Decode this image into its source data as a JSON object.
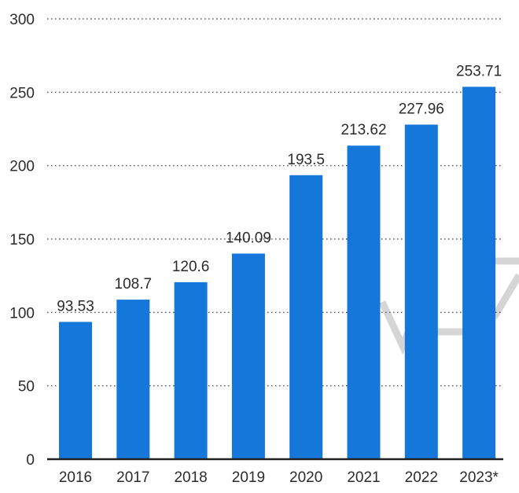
{
  "chart_data": {
    "type": "bar",
    "categories": [
      "2016",
      "2017",
      "2018",
      "2019",
      "2020",
      "2021",
      "2022",
      "2023*"
    ],
    "values": [
      93.53,
      108.7,
      120.6,
      140.09,
      193.5,
      213.62,
      227.96,
      253.71
    ],
    "value_labels": [
      "93.53",
      "108.7",
      "120.6",
      "140.09",
      "193.5",
      "213.62",
      "227.96",
      "253.71"
    ],
    "title": "",
    "xlabel": "",
    "ylabel": "",
    "ylim": [
      0,
      300
    ],
    "yticks": [
      0,
      50,
      100,
      150,
      200,
      250,
      300
    ],
    "grid": true,
    "legend": "none",
    "bar_color": "#1477d9",
    "watermark_color": "#b3b3b3"
  }
}
